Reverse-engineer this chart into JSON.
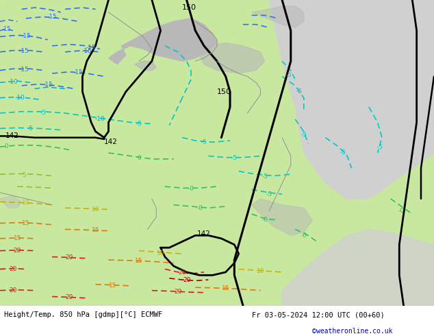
{
  "title_left": "Height/Temp. 850 hPa [gdmp][°C] ECMWF",
  "title_right": "Fr 03-05-2024 12:00 UTC (00+60)",
  "credit": "©weatheronline.co.uk",
  "bg_color": "#ffffff",
  "land_green": "#c8e8a0",
  "land_gray": "#b8b8b8",
  "sea_gray": "#d0d0d0",
  "footer_color": "#ffffff",
  "c_neg20": "#2040e0",
  "c_neg15": "#3070f0",
  "c_neg10": "#00aadd",
  "c_neg5": "#00c8c0",
  "c_0": "#30c060",
  "c_5": "#90c030",
  "c_10": "#c8b000",
  "c_15": "#e07808",
  "c_20": "#d82010",
  "c_25": "#a00000"
}
